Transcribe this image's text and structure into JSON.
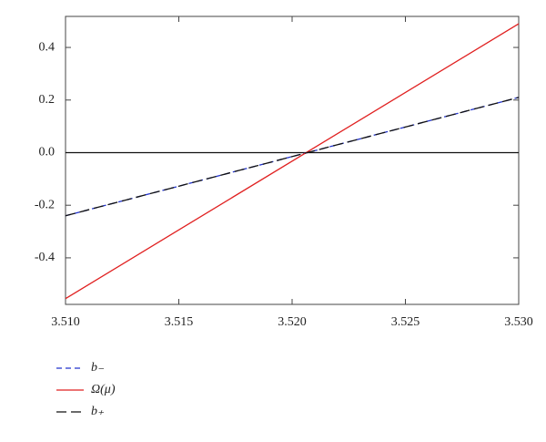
{
  "chart_data": {
    "type": "line",
    "x": [
      3.51,
      3.53
    ],
    "series": [
      {
        "name": "b₋",
        "color": "#2233cc",
        "dash": "6,4",
        "values": [
          -0.24,
          0.21
        ]
      },
      {
        "name": "Ω(μ)",
        "color": "#e02020",
        "dash": "none",
        "values": [
          -0.555,
          0.49
        ]
      },
      {
        "name": "b₊",
        "color": "#111111",
        "dash": "11,5",
        "values": [
          -0.24,
          0.21
        ]
      }
    ],
    "xlim": [
      3.51,
      3.53
    ],
    "xticks": [
      {
        "value": 3.51,
        "label": "3.510"
      },
      {
        "value": 3.515,
        "label": "3.515"
      },
      {
        "value": 3.52,
        "label": "3.520"
      },
      {
        "value": 3.525,
        "label": "3.525"
      },
      {
        "value": 3.53,
        "label": "3.530"
      }
    ],
    "ylim": [
      -0.577,
      0.518
    ],
    "yticks": [
      -0.4,
      -0.2,
      {
        "value": 0,
        "label": "0.0"
      },
      0.2,
      0.4
    ],
    "zero_line": true,
    "legend": "bottom-left"
  }
}
